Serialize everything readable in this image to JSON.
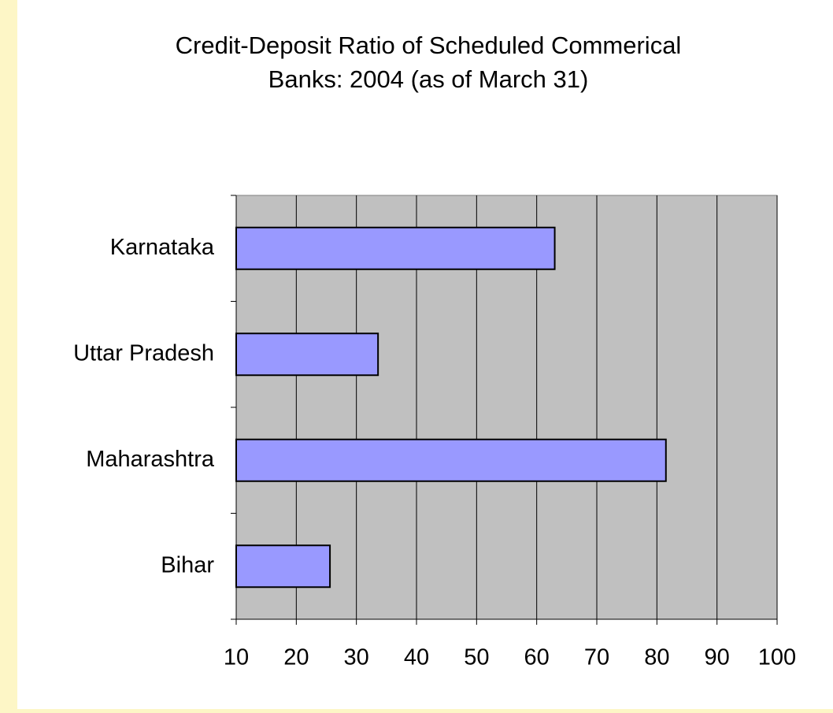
{
  "chart_data": {
    "type": "bar",
    "orientation": "horizontal",
    "title": "Credit-Deposit Ratio of Scheduled Commerical Banks: 2004 (as of March 31)",
    "categories": [
      "Karnataka",
      "Uttar Pradesh",
      "Maharashtra",
      "Bihar"
    ],
    "values": [
      63,
      33.6,
      81.5,
      25.6
    ],
    "color": "#9999ff",
    "xlim": [
      10,
      100
    ],
    "xticks": [
      10,
      20,
      30,
      40,
      50,
      60,
      70,
      80,
      90,
      100
    ],
    "grid": true
  }
}
